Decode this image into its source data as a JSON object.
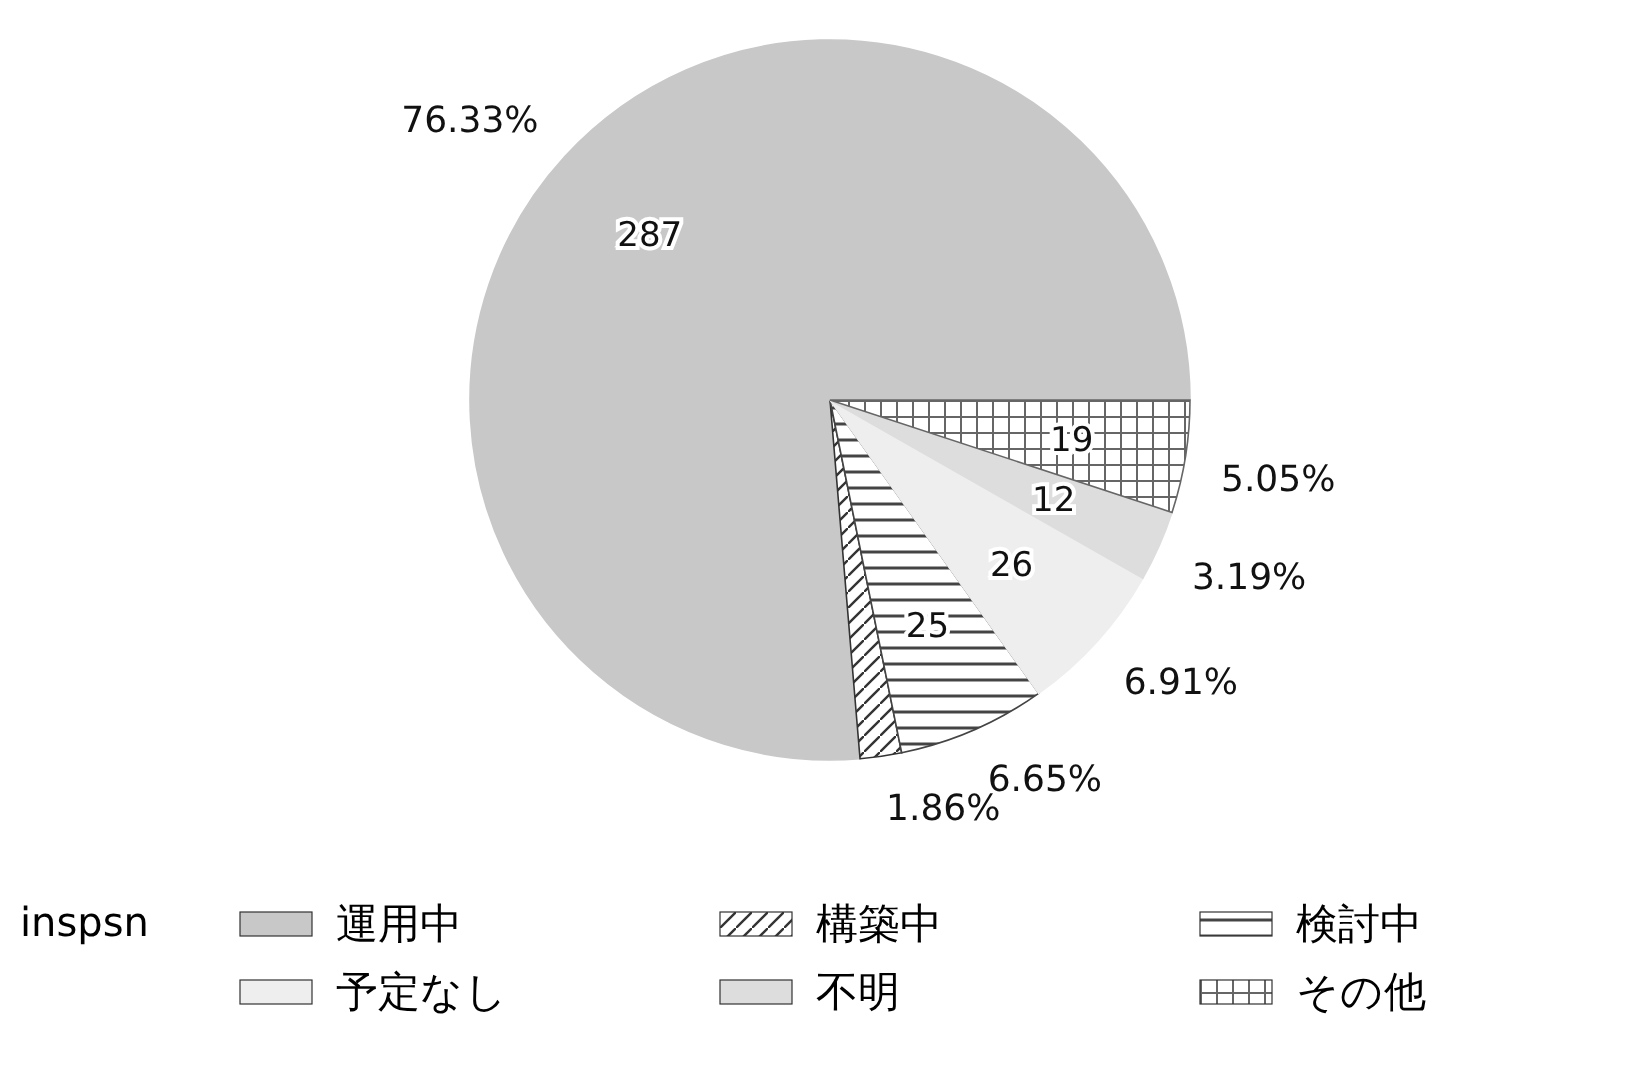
{
  "chart_data": {
    "type": "pie",
    "legend_title": "inspsn",
    "legend": "bottom",
    "categories": [
      "運用中",
      "構築中",
      "検討中",
      "予定なし",
      "不明",
      "その他"
    ],
    "values": [
      287,
      7,
      25,
      26,
      12,
      19
    ],
    "value_labels": [
      "287",
      null,
      "25",
      "26",
      "12",
      "19"
    ],
    "colors": [
      "#c8c8c8",
      "#333333",
      "#444444",
      "#eeeeee",
      "#dddddd",
      "#666666"
    ],
    "annotations": [
      "76.33%",
      "1.86%",
      "6.65%",
      "6.91%",
      "3.19%",
      "5.05%"
    ]
  }
}
